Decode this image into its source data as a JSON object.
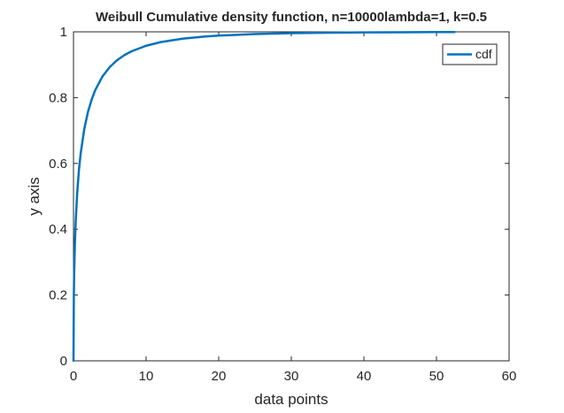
{
  "chart_data": {
    "type": "line",
    "title": "Weibull Cumulative density function, n=10000lambda=1, k=0.5",
    "xlabel": "data points",
    "ylabel": "y axis",
    "xlim": [
      0,
      60
    ],
    "ylim": [
      0,
      1
    ],
    "x_ticks": [
      0,
      10,
      20,
      30,
      40,
      50,
      60
    ],
    "y_ticks": [
      0,
      0.2,
      0.4,
      0.6,
      0.8,
      1
    ],
    "x_tick_labels": [
      "0",
      "10",
      "20",
      "30",
      "40",
      "50",
      "60"
    ],
    "y_tick_labels": [
      "0",
      "0.2",
      "0.4",
      "0.6",
      "0.8",
      "1"
    ],
    "grid": false,
    "legend_position": "top-right",
    "series": [
      {
        "name": "cdf",
        "color": "#0072BD",
        "x": [
          0,
          0.05,
          0.1,
          0.2,
          0.3,
          0.5,
          0.75,
          1,
          1.5,
          2,
          2.5,
          3,
          4,
          5,
          6,
          7,
          8,
          10,
          12,
          15,
          18,
          20,
          25,
          30,
          35,
          40,
          45,
          50,
          52.5
        ],
        "y": [
          0,
          0.2005,
          0.2711,
          0.3606,
          0.4217,
          0.5069,
          0.5795,
          0.6321,
          0.7062,
          0.7569,
          0.7941,
          0.8231,
          0.8647,
          0.8931,
          0.9137,
          0.9291,
          0.9409,
          0.9577,
          0.9687,
          0.9792,
          0.9856,
          0.9886,
          0.9933,
          0.9958,
          0.9973,
          0.9982,
          0.9988,
          0.9992,
          0.9993
        ]
      }
    ]
  }
}
